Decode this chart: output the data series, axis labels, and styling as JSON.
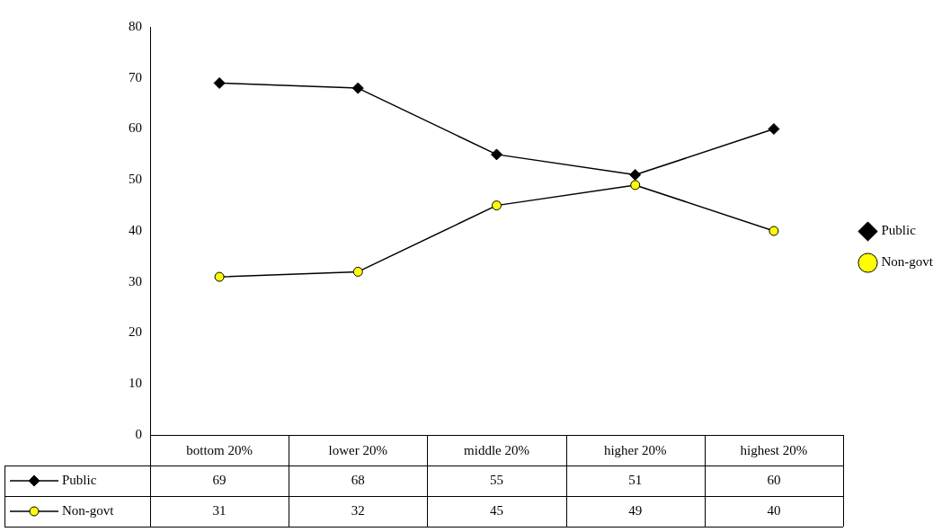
{
  "chart_data": {
    "type": "line",
    "categories": [
      "bottom 20%",
      "lower 20%",
      "middle 20%",
      "higher 20%",
      "highest 20%"
    ],
    "series": [
      {
        "name": "Public",
        "color": "#000000",
        "marker": "diamond",
        "values": [
          69,
          68,
          55,
          51,
          60
        ]
      },
      {
        "name": "Non-govt",
        "color": "#ffff00",
        "marker": "circle",
        "values": [
          31,
          32,
          45,
          49,
          40
        ]
      }
    ],
    "ylim": [
      0,
      80
    ],
    "yticks": [
      0,
      10,
      20,
      30,
      40,
      50,
      60,
      70,
      80
    ],
    "grid": false,
    "legend": "right",
    "data_labels": true,
    "line_style": "solid"
  }
}
